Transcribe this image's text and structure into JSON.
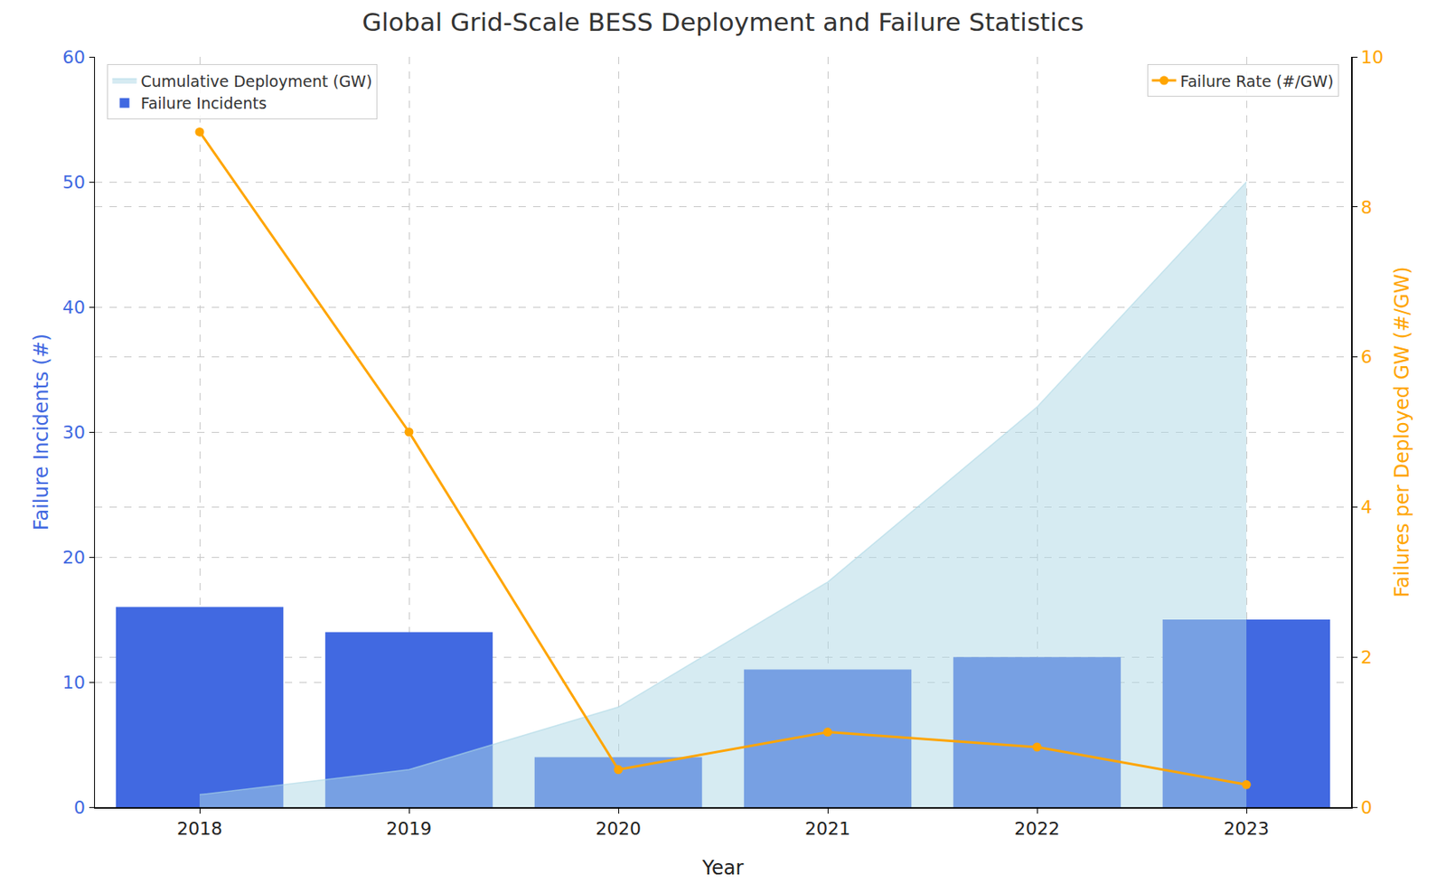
{
  "chart_data": {
    "type": "bar",
    "title": "Global Grid-Scale BESS Deployment and Failure Statistics",
    "x_label": "Year",
    "y_label": "Failure Incidents (#)",
    "y2_label": "Failures per Deployed GW (#/GW)",
    "categories": [
      "2018",
      "2019",
      "2020",
      "2021",
      "2022",
      "2023"
    ],
    "series": [
      {
        "name": "Cumulative Deployment (GW)",
        "type": "area",
        "color": "#add8e6",
        "values": [
          1,
          3,
          8,
          18,
          32,
          50
        ]
      },
      {
        "name": "Failure Incidents",
        "type": "bar",
        "color": "#4169e1",
        "values": [
          16,
          14,
          4,
          11,
          12,
          15
        ]
      },
      {
        "name": "Failure Rate (#/GW)",
        "type": "line",
        "color": "#ffa500",
        "marker": "circle",
        "axis": "y2",
        "values": [
          9,
          5,
          0.5,
          1.0,
          0.8,
          0.3
        ]
      }
    ],
    "ylim": [
      0,
      60
    ],
    "yticks": [
      0,
      10,
      20,
      30,
      40,
      50,
      60
    ],
    "y2lim": [
      0,
      10
    ],
    "y2ticks": [
      0,
      2,
      4,
      6,
      8,
      10
    ],
    "grid": true,
    "legend": "upper left"
  }
}
